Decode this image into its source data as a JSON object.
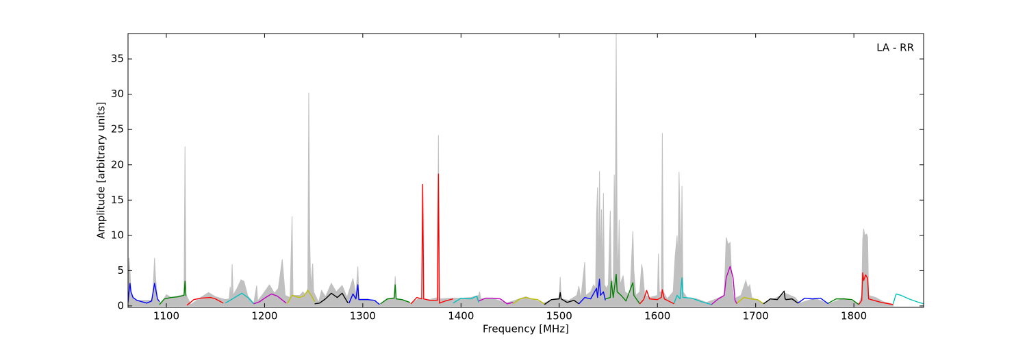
{
  "chart_data": {
    "type": "line",
    "xlabel": "Frequency [MHz]",
    "ylabel": "Amplitude [arbitrary units]",
    "annotation": "LA - RR",
    "xlim": [
      1061,
      1871
    ],
    "ylim": [
      -0.2,
      38.6
    ],
    "xticks": [
      1100,
      1200,
      1300,
      1400,
      1500,
      1600,
      1700,
      1800
    ],
    "yticks": [
      0,
      5,
      10,
      15,
      20,
      25,
      30,
      35
    ],
    "series": [
      {
        "color": "#c0c0c0",
        "fill": true,
        "x": [
          1061,
          1062,
          1063,
          1064,
          1068,
          1086,
          1088,
          1089,
          1091,
          1095,
          1100,
          1105,
          1115,
          1118,
          1119,
          1120,
          1125,
          1135,
          1143,
          1150,
          1160,
          1164,
          1165,
          1166,
          1167,
          1168,
          1172,
          1176,
          1179,
          1183,
          1189,
          1192,
          1193,
          1200,
          1205,
          1210,
          1214,
          1218,
          1221,
          1226,
          1228,
          1229,
          1236,
          1239,
          1242,
          1244,
          1245,
          1246,
          1247,
          1249,
          1250,
          1255,
          1258,
          1262,
          1268,
          1273,
          1279,
          1284,
          1290,
          1293,
          1295,
          1296,
          1305,
          1318,
          1325,
          1332,
          1333,
          1334,
          1349,
          1358,
          1368,
          1376,
          1377,
          1378,
          1390,
          1400,
          1410,
          1418,
          1419,
          1420,
          1432,
          1446,
          1466,
          1484,
          1495,
          1500,
          1501,
          1502,
          1510,
          1518,
          1520,
          1522,
          1526,
          1527,
          1532,
          1535,
          1537,
          1538,
          1539,
          1540,
          1541,
          1542,
          1543,
          1544,
          1545,
          1546,
          1548,
          1550,
          1552,
          1553,
          1555,
          1556,
          1557,
          1558,
          1559,
          1560,
          1561,
          1562,
          1565,
          1567,
          1572,
          1575,
          1576,
          1578,
          1582,
          1584,
          1585,
          1587,
          1592,
          1600,
          1601,
          1602,
          1604,
          1605,
          1606,
          1610,
          1616,
          1618,
          1620,
          1621,
          1622,
          1623,
          1624,
          1625,
          1626,
          1630,
          1640,
          1650,
          1660,
          1668,
          1670,
          1672,
          1674,
          1676,
          1678,
          1685,
          1690,
          1692,
          1694,
          1696,
          1708,
          1720,
          1730,
          1735,
          1740,
          1745,
          1760,
          1774,
          1790,
          1805,
          1808,
          1809,
          1810,
          1811,
          1813,
          1814,
          1815,
          1822,
          1830,
          1840
        ],
        "values": [
          0.5,
          6.8,
          5,
          2,
          0.8,
          0.8,
          6.8,
          4,
          1,
          0.3,
          1.6,
          1.2,
          1.5,
          1.6,
          22.6,
          1.6,
          0.2,
          1.2,
          1.9,
          1.3,
          0.9,
          1,
          2.7,
          1,
          5.9,
          1.5,
          2.5,
          3.7,
          3.5,
          1.4,
          0.4,
          2.9,
          0.7,
          2,
          3,
          1.8,
          2.5,
          6.6,
          1.5,
          1.2,
          12.7,
          1.5,
          1.5,
          2,
          1.5,
          2.5,
          30.2,
          9.5,
          2.5,
          6,
          2,
          0.5,
          2.2,
          1.3,
          3.2,
          2,
          2.9,
          1.2,
          3.9,
          1.5,
          5.6,
          1,
          1,
          0.3,
          1,
          1.2,
          4.2,
          1,
          0.4,
          1.1,
          0.9,
          1.2,
          24.2,
          1,
          1.1,
          1.1,
          1.2,
          1.5,
          2,
          1,
          1.1,
          0.4,
          1.3,
          0.4,
          1,
          1.1,
          4.1,
          1,
          0.8,
          1.5,
          2.8,
          1,
          6.2,
          1.5,
          2,
          3,
          2.5,
          12.8,
          16.8,
          5,
          19.1,
          6,
          13.7,
          4,
          16,
          3,
          2.5,
          3,
          13.5,
          4,
          3,
          18.6,
          8,
          38.6,
          10,
          4,
          12.2,
          3,
          4.3,
          2,
          1.5,
          10.6,
          5,
          1.5,
          2,
          5.9,
          5,
          1.5,
          1.2,
          1.5,
          7.4,
          2,
          2,
          24.5,
          2,
          1,
          2,
          7,
          10,
          6,
          19,
          12.5,
          5,
          17,
          2,
          1.2,
          1,
          0.5,
          1,
          1.5,
          9.7,
          8.7,
          9,
          3,
          1,
          1.5,
          3.6,
          2.5,
          3,
          1.2,
          0.4,
          1.1,
          1.8,
          1.5,
          1.2,
          0.4,
          1.1,
          0.3,
          1.1,
          0.3,
          1.5,
          9.5,
          10.9,
          10,
          10.2,
          9.8,
          1.5,
          1.2,
          0.6,
          0.2
        ]
      },
      {
        "color": "#0000ff",
        "x": [
          1061,
          1062,
          1063,
          1064,
          1066,
          1070,
          1075,
          1080,
          1085,
          1088,
          1089,
          1091,
          1093
        ],
        "values": [
          0.5,
          2,
          3.2,
          2,
          1.2,
          0.8,
          0.6,
          0.4,
          0.7,
          3.2,
          2.5,
          1,
          0.6
        ]
      },
      {
        "color": "#008000",
        "x": [
          1093,
          1098,
          1105,
          1112,
          1118,
          1119,
          1120
        ],
        "values": [
          0.2,
          1,
          1.2,
          1.3,
          1.5,
          3.5,
          1.4
        ]
      },
      {
        "color": "#ff0000",
        "x": [
          1121,
          1128,
          1135,
          1145,
          1150,
          1158
        ],
        "values": [
          0.1,
          0.9,
          1.1,
          1.2,
          1,
          0.4
        ]
      },
      {
        "color": "#00bfbf",
        "x": [
          1160,
          1165,
          1172,
          1177,
          1183,
          1189
        ],
        "values": [
          0.4,
          0.8,
          1.4,
          1.8,
          1.2,
          0.3
        ]
      },
      {
        "color": "#bf00bf",
        "x": [
          1189,
          1195,
          1200,
          1207,
          1213,
          1222
        ],
        "values": [
          0.3,
          0.6,
          1.1,
          1.7,
          1.4,
          0.4
        ]
      },
      {
        "color": "#bfbf00",
        "x": [
          1223,
          1228,
          1235,
          1240,
          1244,
          1248,
          1251
        ],
        "values": [
          0.3,
          1.5,
          1.2,
          1.4,
          2.2,
          1.4,
          0.6
        ]
      },
      {
        "color": "#000000",
        "x": [
          1251,
          1256,
          1262,
          1268,
          1274,
          1279,
          1285
        ],
        "values": [
          0.3,
          0.4,
          1,
          1.8,
          1.2,
          1.8,
          0.4
        ]
      },
      {
        "color": "#0000ff",
        "x": [
          1286,
          1290,
          1293,
          1295,
          1296,
          1305,
          1312,
          1317
        ],
        "values": [
          0.4,
          1.7,
          1,
          3,
          0.9,
          0.9,
          0.8,
          0.2
        ]
      },
      {
        "color": "#008000",
        "x": [
          1318,
          1325,
          1332,
          1333,
          1334,
          1340,
          1348
        ],
        "values": [
          0.3,
          1,
          1.1,
          3,
          1,
          0.9,
          0.5
        ]
      },
      {
        "color": "#ff0000",
        "x": [
          1349,
          1355,
          1360,
          1361,
          1362,
          1368,
          1376,
          1377,
          1378,
          1384,
          1392
        ],
        "values": [
          0.3,
          1.2,
          1,
          17.2,
          1,
          0.8,
          0.8,
          18.7,
          0.4,
          0.7,
          1
        ]
      },
      {
        "color": "#00bfbf",
        "x": [
          1392,
          1400,
          1410,
          1416,
          1418
        ],
        "values": [
          0.4,
          1.1,
          1,
          1.4,
          0.5
        ]
      },
      {
        "color": "#bf00bf",
        "x": [
          1418,
          1425,
          1432,
          1440,
          1447,
          1453
        ],
        "values": [
          0.7,
          1.1,
          1.1,
          1,
          0.3,
          0.5
        ]
      },
      {
        "color": "#bfbf00",
        "x": [
          1453,
          1460,
          1466,
          1472,
          1478,
          1485
        ],
        "values": [
          0.3,
          1,
          1.2,
          1,
          0.9,
          0.3
        ]
      },
      {
        "color": "#000000",
        "x": [
          1485,
          1492,
          1500,
          1501,
          1502,
          1508,
          1515,
          1520
        ],
        "values": [
          0.2,
          0.9,
          1,
          1.9,
          1,
          0.5,
          0.8,
          0.3
        ]
      },
      {
        "color": "#0000ff",
        "x": [
          1520,
          1526,
          1532,
          1538,
          1539,
          1541,
          1542,
          1545,
          1547
        ],
        "values": [
          0.3,
          1.2,
          1,
          2.5,
          1.2,
          3.8,
          1.5,
          2,
          0.8
        ]
      },
      {
        "color": "#008000",
        "x": [
          1547,
          1552,
          1553,
          1555,
          1558,
          1559,
          1563,
          1568,
          1575,
          1576,
          1582
        ],
        "values": [
          1,
          1.2,
          3.5,
          1.2,
          4.5,
          2,
          1.5,
          0.7,
          3.3,
          1.5,
          0.3
        ]
      },
      {
        "color": "#ff0000",
        "x": [
          1582,
          1586,
          1589,
          1592,
          1600,
          1604,
          1605,
          1607,
          1617
        ],
        "values": [
          0.3,
          0.9,
          2.2,
          1,
          0.9,
          1.2,
          2.3,
          1,
          0.3
        ]
      },
      {
        "color": "#00bfbf",
        "x": [
          1617,
          1620,
          1623,
          1625,
          1626,
          1635,
          1645,
          1655
        ],
        "values": [
          0.4,
          1.5,
          1,
          4,
          1.2,
          1.1,
          0.6,
          0.2
        ]
      },
      {
        "color": "#bf00bf",
        "x": [
          1655,
          1662,
          1668,
          1670,
          1674,
          1677,
          1679,
          1681
        ],
        "values": [
          0.2,
          1,
          1.5,
          4,
          5.6,
          4,
          0.8,
          0.3
        ]
      },
      {
        "color": "#bfbf00",
        "x": [
          1681,
          1688,
          1695,
          1702,
          1708
        ],
        "values": [
          0.4,
          1.2,
          1,
          0.9,
          0.3
        ]
      },
      {
        "color": "#000000",
        "x": [
          1708,
          1715,
          1722,
          1729,
          1730,
          1731,
          1737,
          1743
        ],
        "values": [
          0.3,
          1,
          0.9,
          2.1,
          1,
          0.9,
          1,
          0.4
        ]
      },
      {
        "color": "#0000ff",
        "x": [
          1743,
          1750,
          1758,
          1766,
          1774
        ],
        "values": [
          0.4,
          1.1,
          1,
          1.1,
          0.3
        ]
      },
      {
        "color": "#008000",
        "x": [
          1774,
          1782,
          1790,
          1798,
          1805
        ],
        "values": [
          0.4,
          1,
          1,
          0.9,
          0.2
        ]
      },
      {
        "color": "#ff0000",
        "x": [
          1805,
          1808,
          1809,
          1810,
          1812,
          1814,
          1815,
          1820,
          1828,
          1840
        ],
        "values": [
          0.2,
          0.8,
          4.7,
          3.6,
          4.4,
          3.9,
          1,
          0.8,
          0.5,
          0.2
        ]
      },
      {
        "color": "#00bfbf",
        "x": [
          1840,
          1843,
          1848,
          1856,
          1864,
          1871
        ],
        "values": [
          0.3,
          1.7,
          1.5,
          1,
          0.6,
          0.3
        ]
      }
    ]
  }
}
